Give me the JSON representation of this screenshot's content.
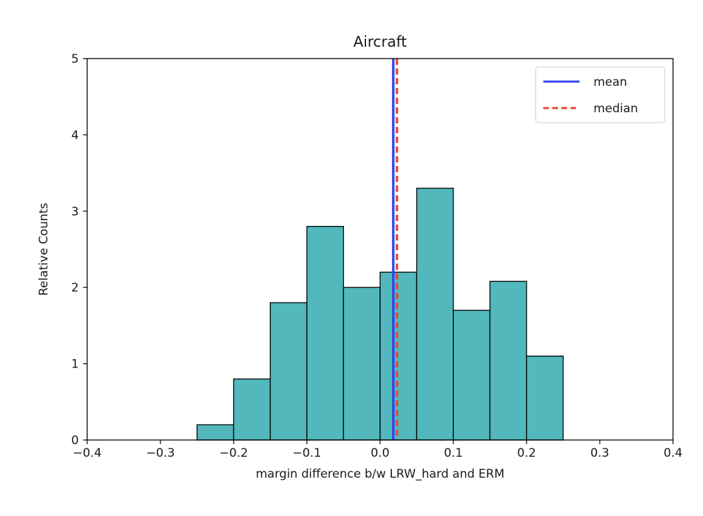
{
  "chart_data": {
    "type": "histogram",
    "title": "Aircraft",
    "xlabel": "margin difference b/w LRW_hard and ERM",
    "ylabel": "Relative Counts",
    "xlim": [
      -0.4,
      0.4
    ],
    "ylim": [
      0,
      5
    ],
    "xticks": [
      -0.4,
      -0.3,
      -0.2,
      -0.1,
      0.0,
      0.1,
      0.2,
      0.3,
      0.4
    ],
    "xtick_labels": [
      "−0.4",
      "−0.3",
      "−0.2",
      "−0.1",
      "0.0",
      "0.1",
      "0.2",
      "0.3",
      "0.4"
    ],
    "yticks": [
      0,
      1,
      2,
      3,
      4,
      5
    ],
    "ytick_labels": [
      "0",
      "1",
      "2",
      "3",
      "4",
      "5"
    ],
    "bar_color": "#52b8bc",
    "bar_edge_color": "#000000",
    "bins": [
      {
        "x0": -0.25,
        "x1": -0.2,
        "value": 0.2
      },
      {
        "x0": -0.2,
        "x1": -0.15,
        "value": 0.8
      },
      {
        "x0": -0.15,
        "x1": -0.1,
        "value": 1.8
      },
      {
        "x0": -0.1,
        "x1": -0.05,
        "value": 2.8
      },
      {
        "x0": -0.05,
        "x1": 0.0,
        "value": 2.0
      },
      {
        "x0": 0.0,
        "x1": 0.05,
        "value": 2.2
      },
      {
        "x0": 0.05,
        "x1": 0.1,
        "value": 3.3
      },
      {
        "x0": 0.1,
        "x1": 0.15,
        "value": 1.7
      },
      {
        "x0": 0.15,
        "x1": 0.2,
        "value": 2.08
      },
      {
        "x0": 0.2,
        "x1": 0.25,
        "value": 1.1
      }
    ],
    "lines": [
      {
        "name": "mean",
        "x": 0.018,
        "color": "#3344ee",
        "style": "solid"
      },
      {
        "name": "median",
        "x": 0.023,
        "color": "#ee4433",
        "style": "dashed"
      }
    ],
    "legend": {
      "position": "top-right",
      "entries": [
        "mean",
        "median"
      ]
    }
  }
}
